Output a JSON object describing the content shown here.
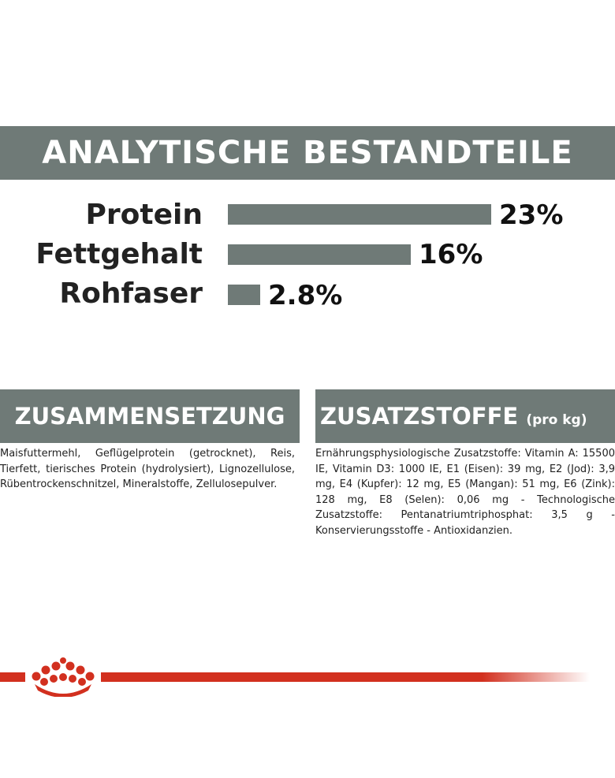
{
  "analytics": {
    "title": "ANALYTISCHE BESTANDTEILE",
    "rows": [
      {
        "label": "Protein",
        "value": "23%",
        "fraction": 0.23
      },
      {
        "label": "Fettgehalt",
        "value": "16%",
        "fraction": 0.16
      },
      {
        "label": "Rohfaser",
        "value": "2.8%",
        "fraction": 0.028
      }
    ],
    "bar_color": "#6f7a77"
  },
  "composition": {
    "title": "ZUSAMMENSETZUNG",
    "text": "Maisfuttermehl, Geflügelprotein (getrocknet), Reis, Tierfett, tierisches Protein (hydrolysiert), Lignozellulose, Rübentrockenschnitzel, Mineralstoffe, Zellulosepulver."
  },
  "additives": {
    "title": "ZUSATZSTOFFE",
    "title_suffix": "(pro kg)",
    "text": "Ernährungsphysiologische Zusatzstoffe: Vitamin A: 15500 IE, Vitamin D3: 1000 IE, E1 (Eisen): 39 mg, E2 (Jod): 3,9 mg, E4 (Kupfer): 12 mg, E5 (Mangan): 51 mg, E6 (Zink): 128 mg, E8 (Selen): 0,06 mg - Technologische Zusatzstoffe: Pentanatriumtriphosphat: 3,5 g - Konservierungsstoffe - Antioxidanzien."
  },
  "brand": {
    "logo_icon": "royal-canin-crown-icon",
    "accent_color": "#d2301f",
    "banner_color": "#6f7a77"
  }
}
